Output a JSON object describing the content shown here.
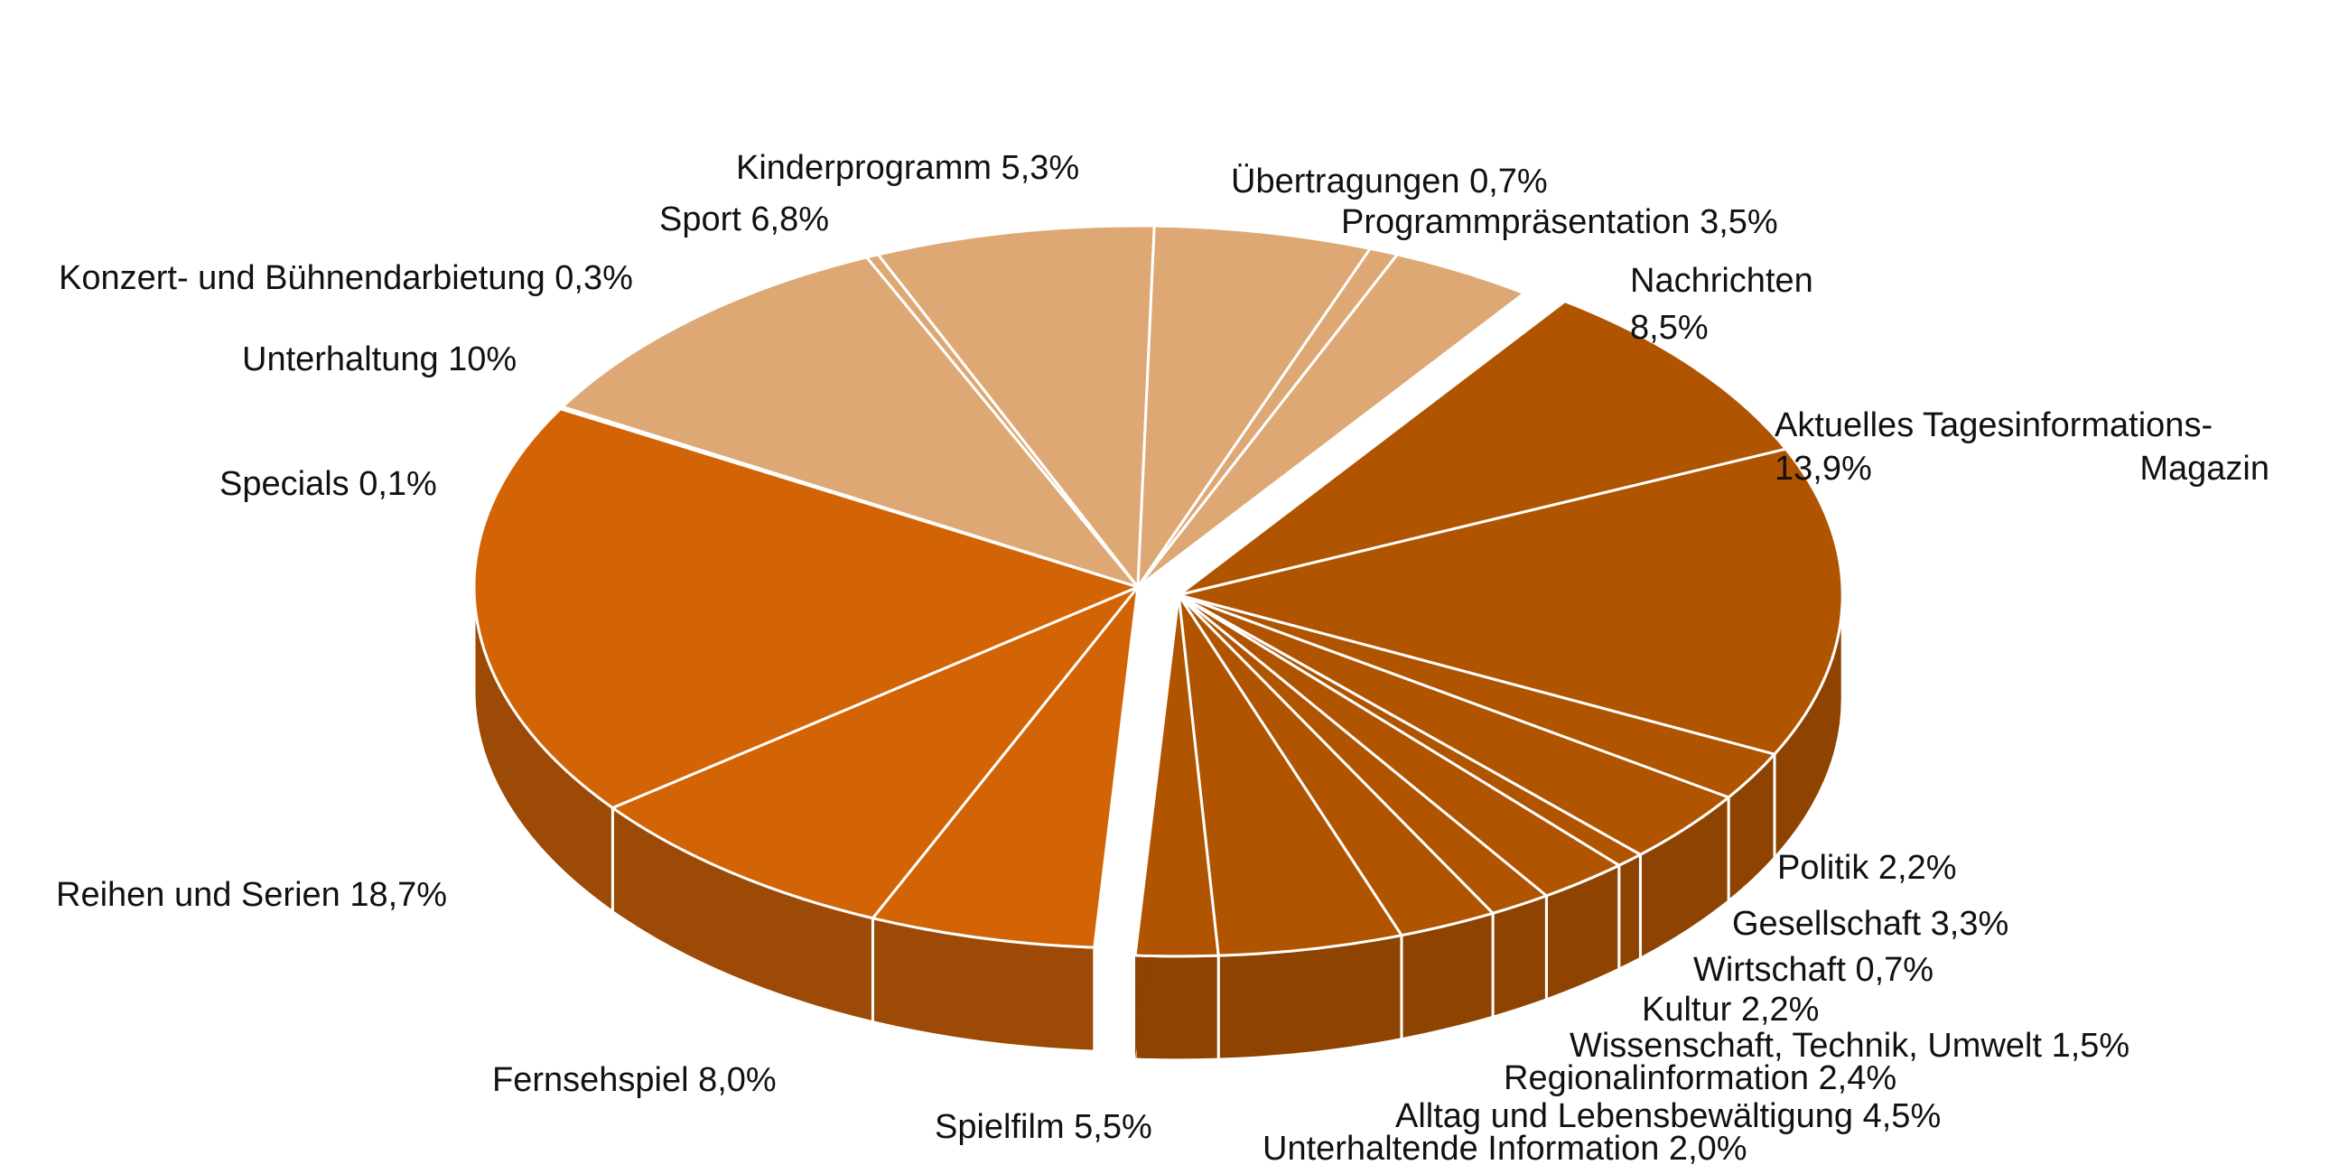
{
  "chart_data": {
    "type": "pie",
    "style": "3d-exploded",
    "colors": {
      "light": "#DDA874",
      "light_wedge_side": "#C29565",
      "orange": "#D26405",
      "orange_side": "#9C4A05",
      "dark": "#B05400",
      "dark_side": "#8E4300",
      "separator": "#ffffff"
    },
    "slices": [
      {
        "label": "Programmpräsentation",
        "value_text": "3,5%",
        "value": 3.5,
        "group": "light"
      },
      {
        "label": "Nachrichten",
        "value_text": "8,5%",
        "value": 8.5,
        "group": "dark"
      },
      {
        "label": "Aktuelles Tagesinformations-Magazin",
        "label_lines": [
          "Aktuelles Tagesinformations-",
          "Magazin"
        ],
        "value_text": "13,9%",
        "value": 13.9,
        "group": "dark"
      },
      {
        "label": "Politik",
        "value_text": "2,2%",
        "value": 2.2,
        "group": "dark"
      },
      {
        "label": "Gesellschaft",
        "value_text": "3,3%",
        "value": 3.3,
        "group": "dark"
      },
      {
        "label": "Wirtschaft",
        "value_text": "0,7%",
        "value": 0.7,
        "group": "dark"
      },
      {
        "label": "Kultur",
        "value_text": "2,2%",
        "value": 2.2,
        "group": "dark"
      },
      {
        "label": "Wissenschaft, Technik, Umwelt",
        "value_text": "1,5%",
        "value": 1.5,
        "group": "dark"
      },
      {
        "label": "Regionalinformation",
        "value_text": "2,4%",
        "value": 2.4,
        "group": "dark"
      },
      {
        "label": "Alltag und Lebensbewältigung",
        "value_text": "4,5%",
        "value": 4.5,
        "group": "dark"
      },
      {
        "label": "Unterhaltende Information",
        "value_text": "2,0%",
        "value": 2.0,
        "group": "dark"
      },
      {
        "label": "Spielfilm",
        "value_text": "5,5%",
        "value": 5.5,
        "group": "orange"
      },
      {
        "label": "Fernsehspiel",
        "value_text": "8,0%",
        "value": 8.0,
        "group": "orange"
      },
      {
        "label": "Reihen und Serien",
        "value_text": "18,7%",
        "value": 18.7,
        "group": "orange"
      },
      {
        "label": "Specials",
        "value_text": "0,1%",
        "value": 0.1,
        "group": "light"
      },
      {
        "label": "Unterhaltung",
        "value_text": "10%",
        "value": 10.0,
        "group": "light"
      },
      {
        "label": "Konzert- und Bühnendarbietung",
        "value_text": "0,3%",
        "value": 0.3,
        "group": "light"
      },
      {
        "label": "Sport",
        "value_text": "6,8%",
        "value": 6.8,
        "group": "light"
      },
      {
        "label": "Kinderprogramm",
        "value_text": "5,3%",
        "value": 5.3,
        "group": "light"
      },
      {
        "label": "Übertragungen",
        "value_text": "0,7%",
        "value": 0.7,
        "group": "light"
      }
    ]
  }
}
